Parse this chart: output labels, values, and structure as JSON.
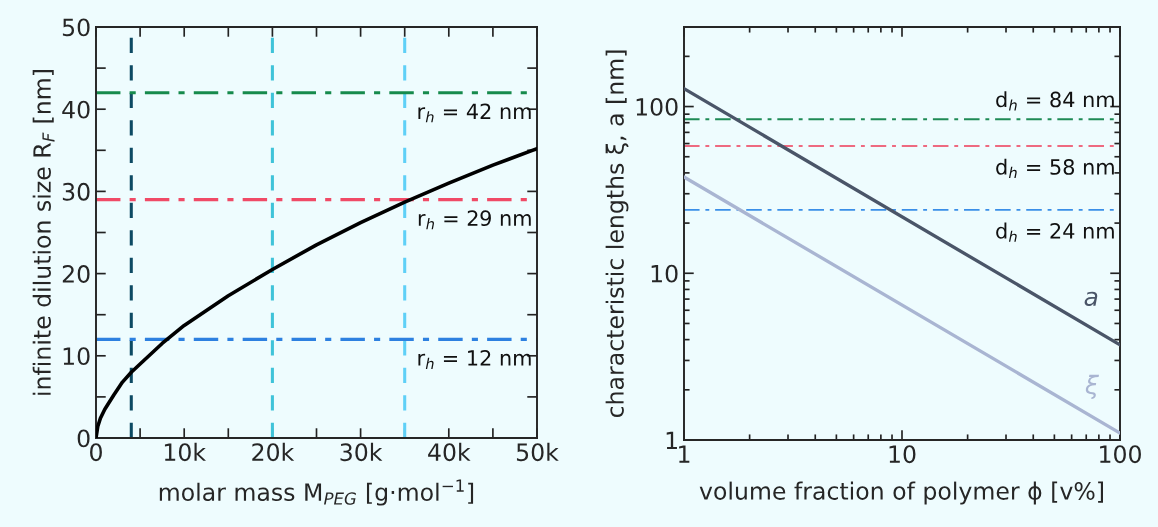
{
  "chart_data": [
    {
      "type": "line",
      "xlabel": "molar mass M$_{PEG}$ [g·mol$^{−1}$]",
      "ylabel": "infinite dilution size R$_{F}$ [nm]",
      "xlim": [
        0,
        50000
      ],
      "ylim": [
        0,
        50
      ],
      "xticks": [
        0,
        {
          "value": 5000,
          "label": null
        },
        {
          "value": 10000,
          "label": "10k"
        },
        {
          "value": 15000,
          "label": null
        },
        {
          "value": 20000,
          "label": "20k"
        },
        {
          "value": 25000,
          "label": null
        },
        {
          "value": 30000,
          "label": "30k"
        },
        {
          "value": 35000,
          "label": null
        },
        {
          "value": 40000,
          "label": "40k"
        },
        {
          "value": 45000,
          "label": null
        },
        {
          "value": 50000,
          "label": "50k"
        }
      ],
      "yticks": [
        0,
        {
          "value": 5,
          "label": null
        },
        10,
        {
          "value": 15,
          "label": null
        },
        20,
        {
          "value": 25,
          "label": null
        },
        30,
        {
          "value": 35,
          "label": null
        },
        40,
        {
          "value": 45,
          "label": null
        },
        50
      ],
      "x": [
        0,
        200,
        500,
        1000,
        2000,
        3000,
        4000,
        5000,
        7500,
        10000,
        15000,
        20000,
        25000,
        30000,
        35000,
        40000,
        45000,
        50000
      ],
      "series": [
        {
          "color": "#000000",
          "values": [
            0,
            1.4,
            2.4,
            3.5,
            5.2,
            6.8,
            8.0,
            9.0,
            11.5,
            13.7,
            17.3,
            20.5,
            23.5,
            26.2,
            28.7,
            31.0,
            33.2,
            35.2
          ]
        }
      ],
      "ref_lines": [
        {
          "axis": "x",
          "value": 4000,
          "color": "#0d4a63",
          "line_style": "dashed"
        },
        {
          "axis": "x",
          "value": 20000,
          "color": "#3fc3d9",
          "line_style": "dashed"
        },
        {
          "axis": "x",
          "value": 35000,
          "color": "#5fd0f7",
          "line_style": "dashed"
        },
        {
          "axis": "y",
          "value": 42,
          "label": "r$_{h}$ = 42 nm",
          "color": "#168a4c",
          "line_style": "dashdot"
        },
        {
          "axis": "y",
          "value": 29,
          "label": "r$_{h}$ = 29 nm",
          "color": "#f04a66",
          "line_style": "dashdot"
        },
        {
          "axis": "y",
          "value": 12,
          "label": "r$_{h}$ = 12 nm",
          "color": "#2d80e0",
          "line_style": "dashdot"
        }
      ]
    },
    {
      "type": "line",
      "xlabel": "volume fraction of polymer ϕ [v%]",
      "ylabel": "characteristic lengths ξ, a [nm]",
      "log": "xy",
      "xlim": [
        1,
        100
      ],
      "ylim": [
        1,
        300
      ],
      "xticks": [
        1,
        10,
        100
      ],
      "yticks": [
        1,
        10,
        100
      ],
      "x": [
        1,
        100
      ],
      "series": [
        {
          "name": "a",
          "color": "#4a5568",
          "values": [
            128,
            3.72
          ]
        },
        {
          "name": "ξ",
          "color": "#a9b5d2",
          "values": [
            37.8,
            1.1
          ]
        }
      ],
      "ref_lines": [
        {
          "axis": "y",
          "value": 84,
          "label": "d$_{h}$ = 84 nm",
          "color": "#1f8a55",
          "line_style": "dashdot"
        },
        {
          "axis": "y",
          "value": 58,
          "label": "d$_{h}$ = 58 nm",
          "color": "#ee6a80",
          "line_style": "dashdot"
        },
        {
          "axis": "y",
          "value": 24,
          "label": "d$_{h}$ = 24 nm",
          "color": "#3a8ee8",
          "line_style": "dashdot"
        }
      ]
    }
  ]
}
